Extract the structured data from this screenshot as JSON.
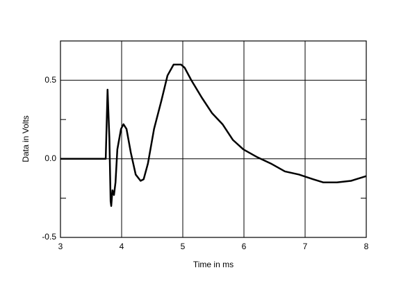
{
  "chart_data": {
    "type": "line",
    "x_label": "Time in ms",
    "y_label": "Data in Volts",
    "xlim": [
      3,
      8
    ],
    "ylim": [
      -0.5,
      0.75
    ],
    "xticks": [
      3,
      4,
      5,
      6,
      7,
      8
    ],
    "yticks": [
      -0.5,
      {
        "value": 0,
        "label": "0.0"
      },
      0.5
    ],
    "yminor": [
      -0.25,
      0.25
    ],
    "grid": true,
    "series": [
      {
        "color": "#000000",
        "x": [
          3.0,
          3.74,
          3.77,
          3.8,
          3.82,
          3.83,
          3.85,
          3.875,
          3.9,
          3.93,
          3.99,
          4.03,
          4.08,
          4.15,
          4.23,
          4.31,
          4.36,
          4.43,
          4.53,
          4.65,
          4.75,
          4.85,
          4.97,
          5.03,
          5.14,
          5.31,
          5.48,
          5.65,
          5.82,
          5.99,
          6.22,
          6.44,
          6.67,
          6.9,
          7.13,
          7.3,
          7.52,
          7.75,
          8.0
        ],
        "values": [
          0,
          0,
          0.44,
          0.13,
          -0.27,
          -0.3,
          -0.2,
          -0.23,
          -0.15,
          0.06,
          0.19,
          0.22,
          0.19,
          0.04,
          -0.1,
          -0.14,
          -0.13,
          -0.03,
          0.19,
          0.37,
          0.53,
          0.6,
          0.6,
          0.58,
          0.5,
          0.39,
          0.29,
          0.22,
          0.12,
          0.06,
          0.01,
          -0.03,
          -0.08,
          -0.1,
          -0.13,
          -0.15,
          -0.15,
          -0.14,
          -0.11
        ]
      }
    ]
  }
}
